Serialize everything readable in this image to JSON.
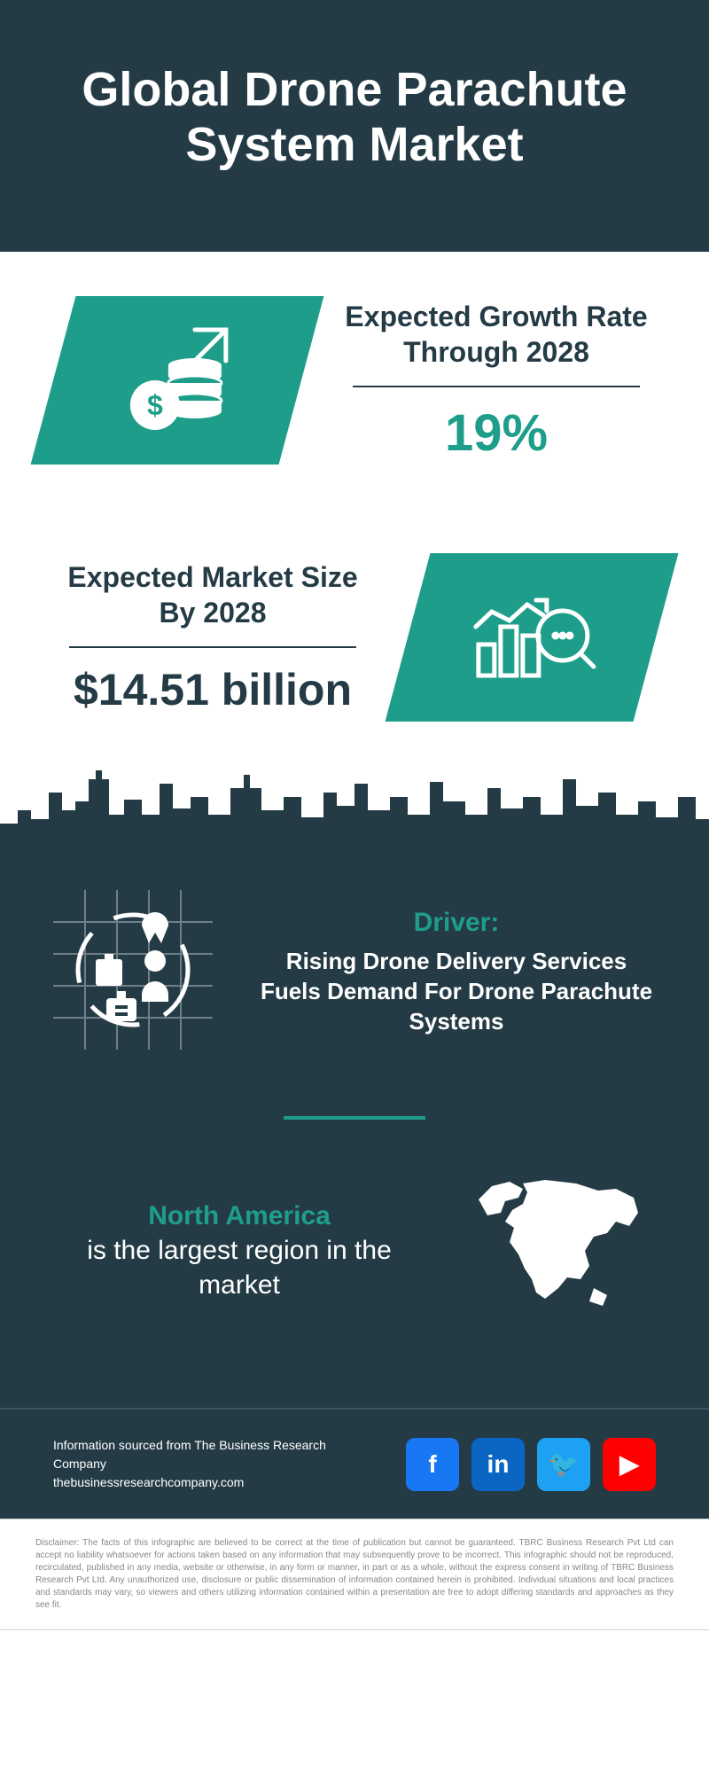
{
  "colors": {
    "header_bg": "#243b46",
    "dark_bg": "#243b46",
    "teal": "#1e9e8a",
    "text_dark": "#243b46",
    "white": "#ffffff",
    "fb": "#1877f2",
    "linkedin": "#0a66c2",
    "twitter": "#1da1f2",
    "youtube": "#ff0000",
    "disclaimer_text": "#888888"
  },
  "header": {
    "title": "Global Drone Parachute System Market"
  },
  "stat1": {
    "label": "Expected Growth Rate Through 2028",
    "value": "19%",
    "value_color": "#1e9e8a",
    "icon_bg": "#1e9e8a"
  },
  "stat2": {
    "label": "Expected Market Size By 2028",
    "value": "$14.51 billion",
    "value_color": "#243b46",
    "icon_bg": "#1e9e8a"
  },
  "driver": {
    "title": "Driver:",
    "title_color": "#1e9e8a",
    "body": "Rising Drone Delivery Services Fuels Demand For Drone Parachute Systems"
  },
  "region": {
    "highlight": "North America",
    "highlight_color": "#1e9e8a",
    "rest": "is the largest region in the market"
  },
  "footer": {
    "source_line1": "Information sourced from The Business Research Company",
    "source_line2": "thebusinessresearchcompany.com",
    "social": [
      {
        "name": "facebook",
        "label": "f",
        "color": "#1877f2"
      },
      {
        "name": "linkedin",
        "label": "in",
        "color": "#0a66c2"
      },
      {
        "name": "twitter",
        "label": "🐦",
        "color": "#1da1f2"
      },
      {
        "name": "youtube",
        "label": "▶",
        "color": "#ff0000"
      }
    ]
  },
  "disclaimer": "Disclaimer: The facts of this infographic are believed to be correct at the time of publication but cannot be guaranteed. TBRC Business Research Pvt Ltd can accept no liability whatsoever for actions taken based on any information that may subsequently prove to be incorrect. This infographic should not be reproduced, recirculated, published in any media, website or otherwise, in any form or manner, in part or as a whole, without the express consent in writing of TBRC Business Research Pvt Ltd. Any unauthorized use, disclosure or public dissemination of information contained herein is prohibited. Individual situations and local practices and standards may vary, so viewers and others utilizing information contained within a presentation are free to adopt differing standards and approaches as they see fit."
}
